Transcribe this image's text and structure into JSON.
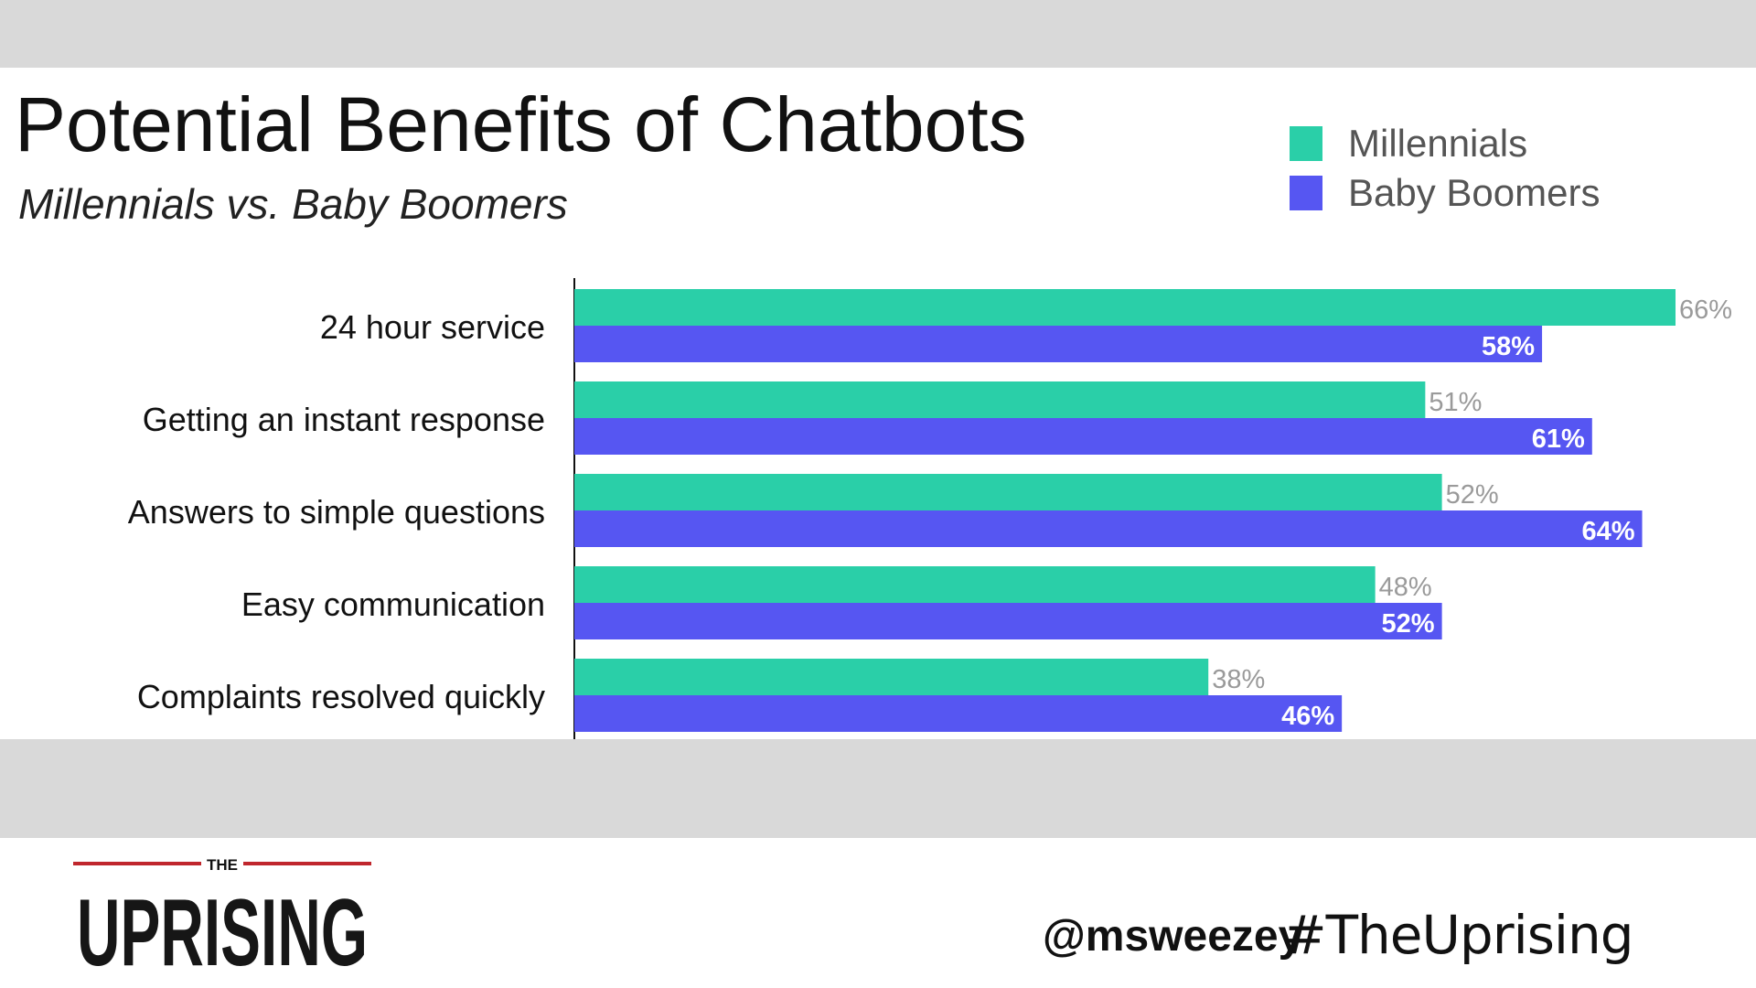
{
  "slide": {
    "handle": "@msweezey",
    "hashtag": "#TheUprising",
    "logo": {
      "top_text": "THE",
      "main_text": "UPRISING"
    }
  },
  "colors": {
    "millennials": "#2acfa8",
    "boomers": "#5656f2",
    "band": "#d9d9d9",
    "logo_red": "#c0272d"
  },
  "chart_data": {
    "type": "bar",
    "orientation": "horizontal",
    "title": "Potential Benefits of Chatbots",
    "subtitle": "Millennials vs. Baby Boomers",
    "legend_position": "top-right",
    "categories": [
      "24 hour service",
      "Getting an instant response",
      "Answers to simple questions",
      "Easy communication",
      "Complaints resolved quickly"
    ],
    "series": [
      {
        "name": "Millennials",
        "values": [
          66,
          51,
          52,
          48,
          38
        ],
        "labels": [
          "66%",
          "51%",
          "52%",
          "48%",
          "38%"
        ]
      },
      {
        "name": "Baby Boomers",
        "values": [
          58,
          61,
          64,
          52,
          46
        ],
        "labels": [
          "58%",
          "61%",
          "64%",
          "52%",
          "46%"
        ]
      }
    ],
    "xlim": [
      0,
      70
    ],
    "grid": false
  }
}
